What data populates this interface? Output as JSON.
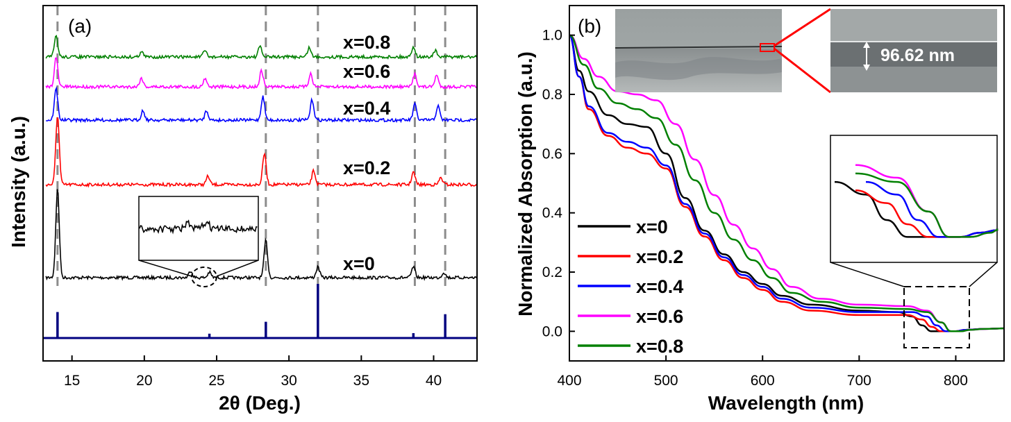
{
  "chart_data": [
    {
      "panel": "(a)",
      "type": "line",
      "xlabel": "2θ (Deg.)",
      "ylabel": "Intensity (a.u.)",
      "xlim": [
        13,
        43
      ],
      "xticks": [
        15,
        20,
        25,
        30,
        35,
        40
      ],
      "grid": false,
      "reference_peaks": [
        14.0,
        28.4,
        32.0,
        38.7,
        40.8
      ],
      "series": [
        {
          "name": "x=0",
          "color": "#000000",
          "peaks": [
            [
              14.0,
              1.0
            ],
            [
              23.2,
              0.08
            ],
            [
              24.5,
              0.06
            ],
            [
              28.4,
              0.42
            ],
            [
              32.0,
              0.12
            ],
            [
              38.6,
              0.12
            ],
            [
              40.7,
              0.06
            ]
          ]
        },
        {
          "name": "x=0.2",
          "color": "#ff0000",
          "peaks": [
            [
              14.0,
              1.0
            ],
            [
              24.4,
              0.12
            ],
            [
              28.3,
              0.45
            ],
            [
              31.7,
              0.2
            ],
            [
              38.6,
              0.18
            ],
            [
              40.5,
              0.1
            ]
          ]
        },
        {
          "name": "x=0.4",
          "color": "#0000ff",
          "peaks": [
            [
              13.9,
              1.0
            ],
            [
              19.9,
              0.3
            ],
            [
              24.3,
              0.3
            ],
            [
              28.2,
              0.75
            ],
            [
              31.6,
              0.65
            ],
            [
              38.7,
              0.5
            ],
            [
              40.3,
              0.45
            ]
          ]
        },
        {
          "name": "x=0.6",
          "color": "#ff00ff",
          "peaks": [
            [
              13.9,
              1.0
            ],
            [
              19.8,
              0.3
            ],
            [
              24.2,
              0.3
            ],
            [
              28.1,
              0.55
            ],
            [
              31.5,
              0.45
            ],
            [
              38.7,
              0.45
            ],
            [
              40.2,
              0.4
            ]
          ]
        },
        {
          "name": "x=0.8",
          "color": "#008000",
          "peaks": [
            [
              13.9,
              1.0
            ],
            [
              19.8,
              0.25
            ],
            [
              24.2,
              0.3
            ],
            [
              28.0,
              0.5
            ],
            [
              31.4,
              0.45
            ],
            [
              38.6,
              0.5
            ],
            [
              40.1,
              0.3
            ]
          ]
        }
      ],
      "reference_pattern": {
        "color": "#000080",
        "sticks": [
          [
            14.0,
            0.48
          ],
          [
            24.5,
            0.08
          ],
          [
            28.4,
            0.3
          ],
          [
            32.0,
            1.0
          ],
          [
            38.6,
            0.09
          ],
          [
            40.8,
            0.44
          ]
        ]
      }
    },
    {
      "panel": "(b)",
      "type": "line",
      "xlabel": "Wavelength (nm)",
      "ylabel": "Normalized Absorption (a.u.)",
      "xlim": [
        400,
        850
      ],
      "ylim": [
        -0.1,
        1.1
      ],
      "xticks": [
        400,
        500,
        600,
        700,
        800
      ],
      "yticks": [
        0.0,
        0.2,
        0.4,
        0.6,
        0.8,
        1.0
      ],
      "ytick_labels": [
        "0.0",
        "0.2",
        "0.4",
        "0.6",
        "0.8",
        "1.0"
      ],
      "grid": false,
      "legend_position": "bottom-left",
      "scale_bar_text": "96.62 nm",
      "series": [
        {
          "name": "x=0",
          "color": "#000000",
          "points": [
            [
              400,
              1.0
            ],
            [
              410,
              0.88
            ],
            [
              420,
              0.81
            ],
            [
              440,
              0.73
            ],
            [
              460,
              0.7
            ],
            [
              480,
              0.69
            ],
            [
              500,
              0.6
            ],
            [
              520,
              0.45
            ],
            [
              540,
              0.34
            ],
            [
              560,
              0.26
            ],
            [
              580,
              0.2
            ],
            [
              600,
              0.16
            ],
            [
              620,
              0.12
            ],
            [
              650,
              0.09
            ],
            [
              700,
              0.07
            ],
            [
              740,
              0.065
            ],
            [
              755,
              0.05
            ],
            [
              765,
              0.02
            ],
            [
              775,
              0.0
            ],
            [
              790,
              0.0
            ],
            [
              800,
              0.0
            ],
            [
              810,
              0.005
            ],
            [
              830,
              0.008
            ],
            [
              850,
              0.01
            ]
          ]
        },
        {
          "name": "x=0.2",
          "color": "#ff0000",
          "points": [
            [
              400,
              1.0
            ],
            [
              410,
              0.86
            ],
            [
              420,
              0.75
            ],
            [
              440,
              0.66
            ],
            [
              460,
              0.62
            ],
            [
              480,
              0.6
            ],
            [
              500,
              0.55
            ],
            [
              520,
              0.42
            ],
            [
              540,
              0.32
            ],
            [
              560,
              0.24
            ],
            [
              580,
              0.18
            ],
            [
              600,
              0.14
            ],
            [
              620,
              0.1
            ],
            [
              650,
              0.07
            ],
            [
              700,
              0.055
            ],
            [
              750,
              0.055
            ],
            [
              765,
              0.04
            ],
            [
              775,
              0.015
            ],
            [
              785,
              0.0
            ],
            [
              800,
              0.0
            ],
            [
              810,
              0.005
            ],
            [
              830,
              0.008
            ],
            [
              850,
              0.01
            ]
          ]
        },
        {
          "name": "x=0.4",
          "color": "#0000ff",
          "points": [
            [
              400,
              1.0
            ],
            [
              410,
              0.86
            ],
            [
              420,
              0.76
            ],
            [
              440,
              0.67
            ],
            [
              460,
              0.64
            ],
            [
              480,
              0.62
            ],
            [
              500,
              0.56
            ],
            [
              520,
              0.43
            ],
            [
              540,
              0.33
            ],
            [
              560,
              0.25
            ],
            [
              580,
              0.19
            ],
            [
              600,
              0.15
            ],
            [
              620,
              0.11
            ],
            [
              650,
              0.08
            ],
            [
              700,
              0.065
            ],
            [
              755,
              0.065
            ],
            [
              770,
              0.05
            ],
            [
              780,
              0.02
            ],
            [
              790,
              0.0
            ],
            [
              800,
              0.0
            ],
            [
              810,
              0.005
            ],
            [
              830,
              0.008
            ],
            [
              850,
              0.01
            ]
          ]
        },
        {
          "name": "x=0.6",
          "color": "#ff00ff",
          "points": [
            [
              400,
              1.0
            ],
            [
              415,
              0.92
            ],
            [
              430,
              0.86
            ],
            [
              450,
              0.81
            ],
            [
              470,
              0.8
            ],
            [
              490,
              0.78
            ],
            [
              510,
              0.7
            ],
            [
              530,
              0.58
            ],
            [
              550,
              0.46
            ],
            [
              570,
              0.36
            ],
            [
              590,
              0.28
            ],
            [
              610,
              0.21
            ],
            [
              630,
              0.15
            ],
            [
              660,
              0.11
            ],
            [
              700,
              0.09
            ],
            [
              750,
              0.085
            ],
            [
              770,
              0.07
            ],
            [
              785,
              0.03
            ],
            [
              795,
              0.0
            ],
            [
              805,
              0.0
            ],
            [
              815,
              0.005
            ],
            [
              830,
              0.008
            ],
            [
              850,
              0.01
            ]
          ]
        },
        {
          "name": "x=0.8",
          "color": "#008000",
          "points": [
            [
              400,
              1.0
            ],
            [
              415,
              0.9
            ],
            [
              430,
              0.82
            ],
            [
              450,
              0.77
            ],
            [
              470,
              0.75
            ],
            [
              490,
              0.72
            ],
            [
              510,
              0.63
            ],
            [
              530,
              0.51
            ],
            [
              550,
              0.4
            ],
            [
              570,
              0.31
            ],
            [
              590,
              0.24
            ],
            [
              610,
              0.18
            ],
            [
              630,
              0.13
            ],
            [
              660,
              0.1
            ],
            [
              700,
              0.08
            ],
            [
              750,
              0.075
            ],
            [
              770,
              0.065
            ],
            [
              785,
              0.03
            ],
            [
              795,
              0.0
            ],
            [
              805,
              0.0
            ],
            [
              815,
              0.005
            ],
            [
              830,
              0.008
            ],
            [
              850,
              0.01
            ]
          ]
        }
      ]
    }
  ]
}
